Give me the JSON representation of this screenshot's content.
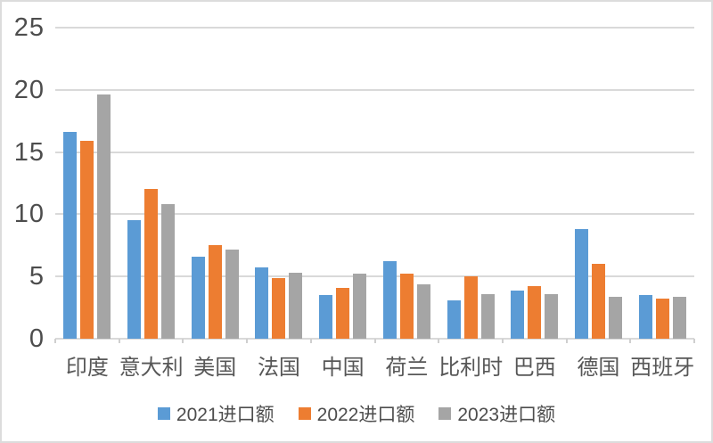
{
  "chart_data": {
    "type": "bar",
    "title": "",
    "categories": [
      "印度",
      "意大利",
      "美国",
      "法国",
      "中国",
      "荷兰",
      "比利时",
      "巴西",
      "德国",
      "西班牙"
    ],
    "series": [
      {
        "name": "2021进口额",
        "color": "#5B9BD5",
        "values": [
          16.6,
          9.5,
          6.6,
          5.7,
          3.5,
          6.2,
          3.1,
          3.9,
          8.8,
          3.5
        ]
      },
      {
        "name": "2022进口额",
        "color": "#ED7D31",
        "values": [
          15.9,
          12.0,
          7.5,
          4.9,
          4.1,
          5.2,
          5.0,
          4.2,
          6.0,
          3.2
        ]
      },
      {
        "name": "2023进口额",
        "color": "#A5A5A5",
        "values": [
          19.6,
          10.8,
          7.2,
          5.3,
          5.2,
          4.4,
          3.6,
          3.6,
          3.4,
          3.4
        ]
      }
    ],
    "y_axis": {
      "min": 0,
      "max": 25,
      "tick_labels": [
        "0",
        "5",
        "10",
        "15",
        "20",
        "25"
      ]
    },
    "grid": true,
    "legend_position": "bottom",
    "colors": {
      "gridline": "#d9d9d9",
      "axis_text": "#4d4d4d",
      "category_text": "#575757",
      "background": "#ffffff",
      "border": "#dcdcdc"
    }
  }
}
